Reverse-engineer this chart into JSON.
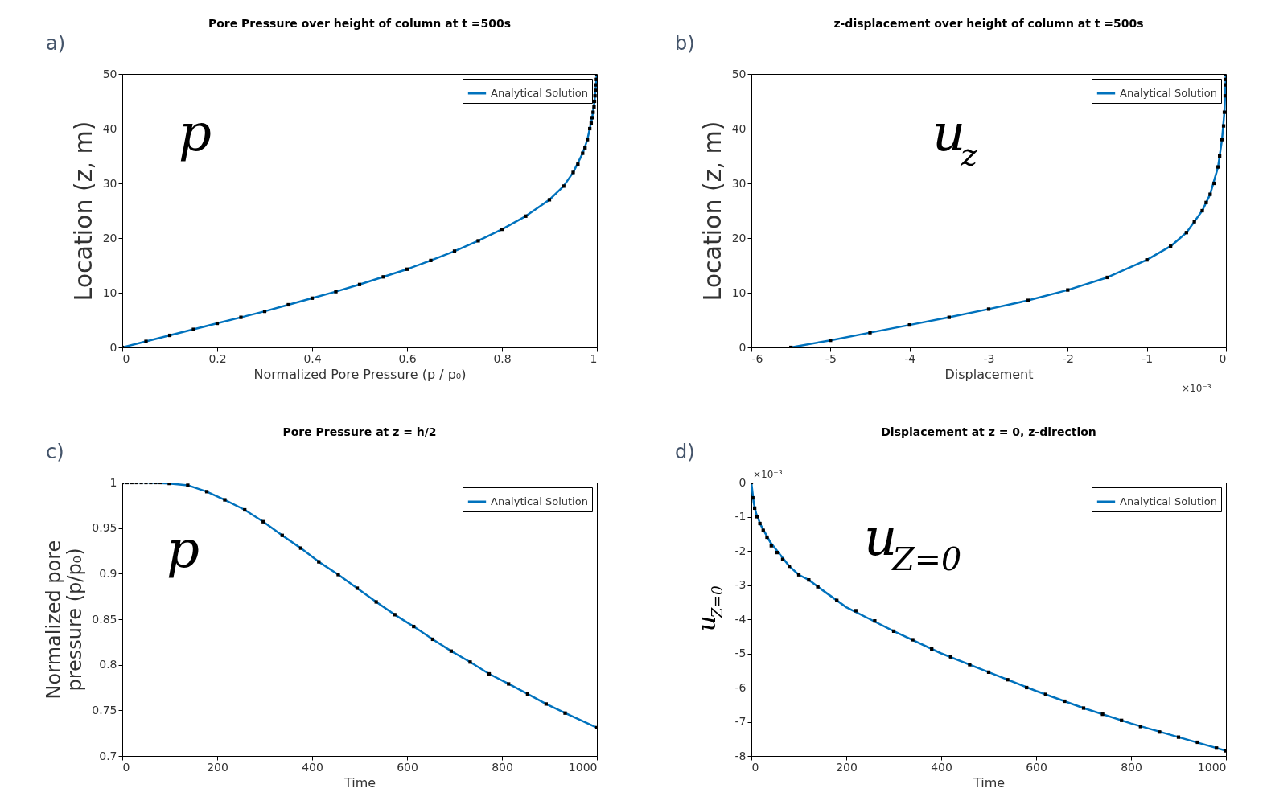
{
  "chart_data": [
    {
      "type": "line",
      "title": "Pore Pressure over height of column at t =500s",
      "xlabel": "Normalized Pore Pressure (p / p₀)",
      "ylabel": "Location (z, m)",
      "xlim": [
        0,
        1
      ],
      "ylim": [
        0,
        50
      ],
      "xticks": [
        0,
        0.2,
        0.4,
        0.6,
        0.8,
        1
      ],
      "yticks": [
        0,
        10,
        20,
        30,
        40,
        50
      ],
      "legend": "top right",
      "annotations": [
        "a)",
        "p"
      ],
      "series": [
        {
          "name": "Analytical Solution",
          "color": "#0072bd",
          "type": "line",
          "x": [
            0,
            0.05,
            0.1,
            0.15,
            0.2,
            0.25,
            0.3,
            0.35,
            0.4,
            0.45,
            0.5,
            0.55,
            0.6,
            0.65,
            0.7,
            0.75,
            0.8,
            0.85,
            0.9,
            0.93,
            0.95,
            0.97,
            0.98,
            0.99,
            0.995,
            1
          ],
          "values": [
            0,
            1.1,
            2.2,
            3.3,
            4.4,
            5.5,
            6.6,
            7.8,
            9,
            10.2,
            11.5,
            12.9,
            14.3,
            15.9,
            17.6,
            19.5,
            21.6,
            24,
            27,
            29.5,
            32,
            35.5,
            38,
            42,
            45,
            50
          ]
        },
        {
          "color": "#000000",
          "type": "scatter",
          "marker": "square",
          "x": [
            0,
            0.05,
            0.1,
            0.15,
            0.2,
            0.25,
            0.3,
            0.35,
            0.4,
            0.45,
            0.5,
            0.55,
            0.6,
            0.65,
            0.7,
            0.75,
            0.8,
            0.85,
            0.9,
            0.93,
            0.95,
            0.96,
            0.97,
            0.975,
            0.98,
            0.985,
            0.988,
            0.99,
            0.992,
            0.994,
            0.995,
            0.996,
            0.997,
            0.998,
            0.999,
            1
          ],
          "values": [
            0,
            1.1,
            2.2,
            3.3,
            4.4,
            5.5,
            6.6,
            7.8,
            9,
            10.2,
            11.5,
            12.9,
            14.3,
            15.9,
            17.6,
            19.5,
            21.6,
            24,
            27,
            29.5,
            32,
            33.5,
            35.5,
            36.5,
            38,
            40,
            41,
            42,
            43,
            44,
            45,
            46,
            47,
            48,
            49,
            50
          ]
        }
      ]
    },
    {
      "type": "line",
      "title": "z-displacement over height of column at t =500s",
      "xlabel": "Displacement",
      "ylabel": "Location (z, m)",
      "xlim": [
        -6,
        0
      ],
      "ylim": [
        0,
        50
      ],
      "xticks": [
        -6,
        -5,
        -4,
        -3,
        -2,
        -1,
        0
      ],
      "yticks": [
        0,
        10,
        20,
        30,
        40,
        50
      ],
      "legend": "top right",
      "annotations": [
        "b)",
        "u$_{z}$",
        "×10⁻³"
      ],
      "series": [
        {
          "name": "Analytical Solution",
          "color": "#0072bd",
          "type": "line",
          "x": [
            -5.5,
            -5,
            -4.5,
            -4,
            -3.5,
            -3,
            -2.5,
            -2,
            -1.5,
            -1,
            -0.7,
            -0.5,
            -0.3,
            -0.2,
            -0.1,
            -0.05,
            -0.02,
            0
          ],
          "values": [
            0,
            1.3,
            2.7,
            4.1,
            5.5,
            7,
            8.6,
            10.5,
            12.8,
            16,
            18.5,
            21,
            25,
            28,
            33,
            38,
            43,
            50
          ]
        },
        {
          "color": "#000000",
          "type": "scatter",
          "marker": "square",
          "x": [
            -5.5,
            -5,
            -4.5,
            -4,
            -3.5,
            -3,
            -2.5,
            -2,
            -1.5,
            -1,
            -0.7,
            -0.5,
            -0.4,
            -0.3,
            -0.25,
            -0.2,
            -0.15,
            -0.1,
            -0.08,
            -0.05,
            -0.03,
            -0.02,
            -0.01,
            0,
            0,
            0
          ],
          "values": [
            0,
            1.3,
            2.7,
            4.1,
            5.5,
            7,
            8.6,
            10.5,
            12.8,
            16,
            18.5,
            21,
            23,
            25,
            26.5,
            28,
            30,
            33,
            35,
            38,
            40.5,
            43,
            46,
            48,
            49,
            50
          ]
        }
      ]
    },
    {
      "type": "line",
      "title": "Pore Pressure at z = h/2",
      "xlabel": "Time",
      "ylabel": "Normalized pore pressure (p/p₀)",
      "xlim": [
        0,
        1000
      ],
      "ylim": [
        0.7,
        1
      ],
      "xticks": [
        0,
        200,
        400,
        600,
        800,
        1000
      ],
      "yticks": [
        0.7,
        0.75,
        0.8,
        0.85,
        0.9,
        0.95,
        1
      ],
      "legend": "top right",
      "annotations": [
        "c)",
        "p"
      ],
      "series": [
        {
          "name": "Analytical Solution",
          "color": "#0072bd",
          "type": "line",
          "x": [
            0,
            50,
            99,
            138,
            178,
            216,
            258,
            297,
            337,
            376,
            414,
            455,
            495,
            535,
            574,
            614,
            654,
            693,
            733,
            773,
            814,
            854,
            893,
            933,
            1000
          ],
          "values": [
            1,
            1,
            0.999,
            0.997,
            0.99,
            0.981,
            0.97,
            0.957,
            0.942,
            0.928,
            0.913,
            0.899,
            0.884,
            0.869,
            0.855,
            0.842,
            0.828,
            0.815,
            0.803,
            0.79,
            0.779,
            0.768,
            0.757,
            0.747,
            0.731
          ]
        },
        {
          "color": "#000000",
          "type": "scatter",
          "marker": "square",
          "x": [
            0,
            10,
            20,
            30,
            40,
            50,
            60,
            70,
            80,
            99,
            138,
            178,
            216,
            258,
            297,
            337,
            376,
            414,
            455,
            495,
            535,
            574,
            614,
            654,
            693,
            733,
            773,
            814,
            854,
            893,
            933,
            1000
          ],
          "values": [
            1,
            1,
            1,
            1,
            1,
            1,
            1,
            1,
            1,
            0.999,
            0.997,
            0.99,
            0.981,
            0.97,
            0.957,
            0.942,
            0.928,
            0.913,
            0.899,
            0.884,
            0.869,
            0.855,
            0.842,
            0.828,
            0.815,
            0.803,
            0.79,
            0.779,
            0.768,
            0.757,
            0.747,
            0.731
          ]
        }
      ]
    },
    {
      "type": "line",
      "title": "Displacement at z = 0, z-direction",
      "xlabel": "Time",
      "ylabel": "u$_{Z=0}$",
      "xlim": [
        0,
        1000
      ],
      "ylim": [
        -8,
        0
      ],
      "xticks": [
        0,
        200,
        400,
        600,
        800,
        1000
      ],
      "yticks": [
        -8,
        -7,
        -6,
        -5,
        -4,
        -3,
        -2,
        -1,
        0
      ],
      "legend": "top right",
      "annotations": [
        "d)",
        "u$_{Z=0}$",
        "×10⁻³"
      ],
      "series": [
        {
          "name": "Analytical Solution",
          "color": "#0072bd",
          "type": "line",
          "x": [
            0,
            5,
            10,
            20,
            40,
            60,
            80,
            100,
            121,
            150,
            200,
            250,
            300,
            400,
            500,
            600,
            700,
            800,
            900,
            1000
          ],
          "values": [
            0,
            -0.6,
            -0.9,
            -1.25,
            -1.75,
            -2.1,
            -2.45,
            -2.7,
            -2.85,
            -3.15,
            -3.65,
            -4,
            -4.35,
            -5,
            -5.55,
            -6.1,
            -6.6,
            -7.05,
            -7.45,
            -7.85
          ]
        },
        {
          "color": "#000000",
          "type": "scatter",
          "marker": "square",
          "x": [
            0,
            3,
            7,
            12,
            18,
            25,
            33,
            42,
            54,
            66,
            80,
            100,
            121,
            140,
            180,
            220,
            260,
            300,
            340,
            380,
            420,
            460,
            500,
            540,
            580,
            620,
            660,
            700,
            740,
            780,
            820,
            860,
            900,
            940,
            980,
            1000
          ],
          "values": [
            0,
            -0.45,
            -0.75,
            -1,
            -1.2,
            -1.4,
            -1.6,
            -1.85,
            -2.05,
            -2.25,
            -2.45,
            -2.7,
            -2.85,
            -3.05,
            -3.45,
            -3.75,
            -4.05,
            -4.35,
            -4.6,
            -4.87,
            -5.1,
            -5.33,
            -5.55,
            -5.77,
            -6,
            -6.2,
            -6.4,
            -6.6,
            -6.78,
            -6.96,
            -7.14,
            -7.3,
            -7.45,
            -7.6,
            -7.77,
            -7.85
          ]
        }
      ]
    }
  ]
}
